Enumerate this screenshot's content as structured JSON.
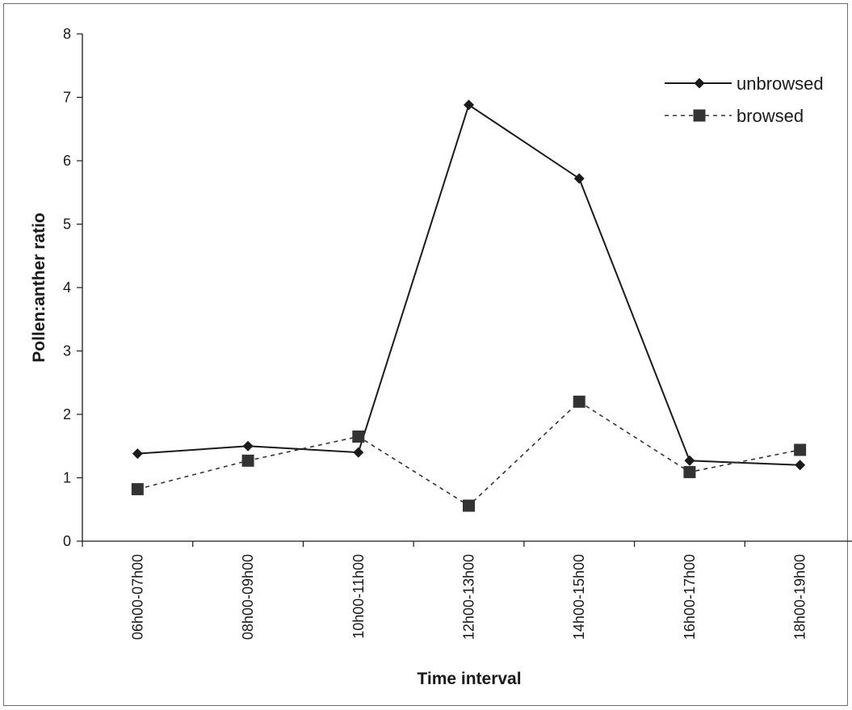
{
  "chart_data": {
    "type": "line",
    "title": "",
    "xlabel": "Time interval",
    "ylabel": "Pollen:anther ratio",
    "ylim": [
      0,
      8
    ],
    "yticks": [
      0,
      1,
      2,
      3,
      4,
      5,
      6,
      7,
      8
    ],
    "grid": false,
    "legend_position": "top-right",
    "categories": [
      "06h00-07h00",
      "08h00-09h00",
      "10h00-11h00",
      "12h00-13h00",
      "14h00-15h00",
      "16h00-17h00",
      "18h00-19h00"
    ],
    "series": [
      {
        "name": "unbrowsed",
        "values": [
          1.38,
          1.5,
          1.4,
          6.88,
          5.72,
          1.27,
          1.2
        ],
        "color": "#1a1a1a",
        "line_style": "solid",
        "marker": "diamond"
      },
      {
        "name": "browsed",
        "values": [
          0.82,
          1.27,
          1.65,
          0.56,
          2.2,
          1.09,
          1.44
        ],
        "color": "#333333",
        "line_style": "dashed",
        "marker": "square"
      }
    ]
  }
}
